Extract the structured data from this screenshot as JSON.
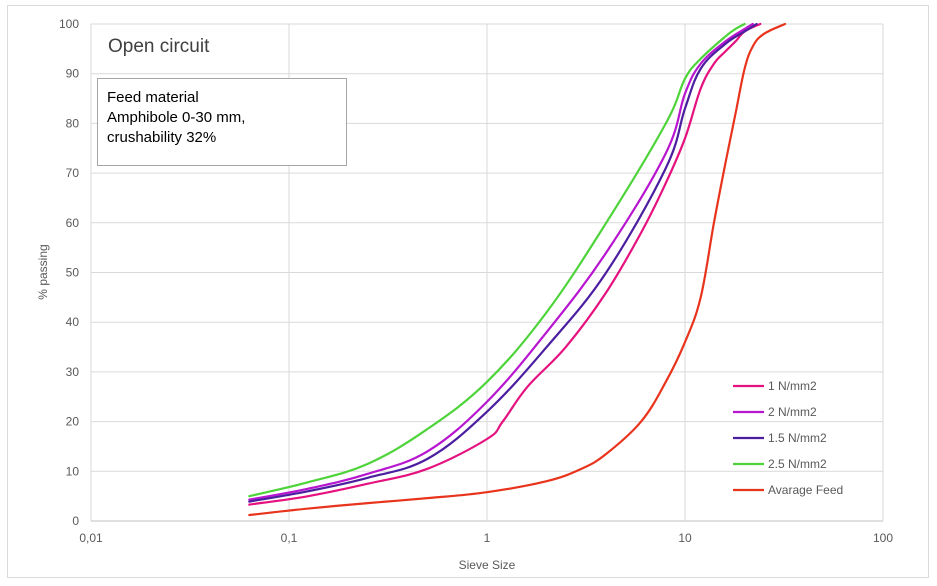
{
  "chart_data": {
    "type": "line",
    "title": "Open circuit",
    "annotation_lines": [
      "Feed material",
      "Amphibole 0-30 mm,",
      "crushability 32%"
    ],
    "xlabel": "Sieve Size",
    "ylabel": "% passing",
    "x_scale": "log",
    "xlim": [
      0.01,
      100
    ],
    "ylim": [
      0,
      100
    ],
    "x_ticks": [
      0.01,
      0.1,
      1,
      10,
      100
    ],
    "x_tick_labels": [
      "0,01",
      "0,1",
      "1",
      "10",
      "100"
    ],
    "y_ticks": [
      0,
      10,
      20,
      30,
      40,
      50,
      60,
      70,
      80,
      90,
      100
    ],
    "y_tick_labels": [
      "0",
      "10",
      "20",
      "30",
      "40",
      "50",
      "60",
      "70",
      "80",
      "90",
      "100"
    ],
    "grid": true,
    "legend_position": "bottom-right",
    "series": [
      {
        "name": "1 N/mm2",
        "color": "#e5117f",
        "x": [
          0.063,
          0.125,
          0.25,
          0.5,
          1,
          1.2,
          1.6,
          2.5,
          4,
          6,
          8,
          10,
          12,
          14,
          16,
          18,
          20,
          24
        ],
        "y": [
          3.3,
          5,
          7.5,
          10.5,
          16.5,
          20,
          27,
          35,
          46,
          58,
          68,
          77,
          87,
          92,
          94.5,
          96.5,
          98.5,
          100
        ]
      },
      {
        "name": "2 N/mm2",
        "color": "#b815d0",
        "x": [
          0.063,
          0.125,
          0.25,
          0.5,
          1,
          2,
          4,
          8,
          10,
          12,
          16,
          20,
          22
        ],
        "y": [
          4.3,
          6.5,
          9.5,
          14,
          24,
          38,
          54,
          74,
          86,
          92,
          96.5,
          99,
          100
        ]
      },
      {
        "name": "1.5 N/mm2",
        "color": "#4b1ea0",
        "x": [
          0.063,
          0.125,
          0.25,
          0.5,
          1,
          2,
          4,
          8,
          10,
          12,
          16,
          20,
          23
        ],
        "y": [
          3.9,
          6,
          8.7,
          12.5,
          22,
          35,
          50,
          71,
          83,
          91,
          96,
          98.5,
          100
        ]
      },
      {
        "name": "2.5 N/mm2",
        "color": "#4ed43a",
        "x": [
          0.063,
          0.125,
          0.25,
          0.5,
          1,
          2,
          4,
          8,
          10,
          12,
          16,
          18,
          20
        ],
        "y": [
          5,
          7.8,
          11.5,
          18.5,
          28,
          42,
          60,
          80,
          89,
          93,
          97.5,
          99,
          100
        ]
      },
      {
        "name": "Avarage Feed",
        "color": "#e8341c",
        "x": [
          0.063,
          0.125,
          0.25,
          0.5,
          1,
          2,
          3,
          4,
          6,
          8,
          10,
          12,
          14,
          16,
          18,
          20,
          22,
          25,
          32
        ],
        "y": [
          1.2,
          2.5,
          3.6,
          4.6,
          5.8,
          8,
          10.5,
          13.5,
          20,
          28,
          36,
          45,
          60,
          72,
          82,
          91,
          95.5,
          98,
          100
        ]
      }
    ]
  }
}
